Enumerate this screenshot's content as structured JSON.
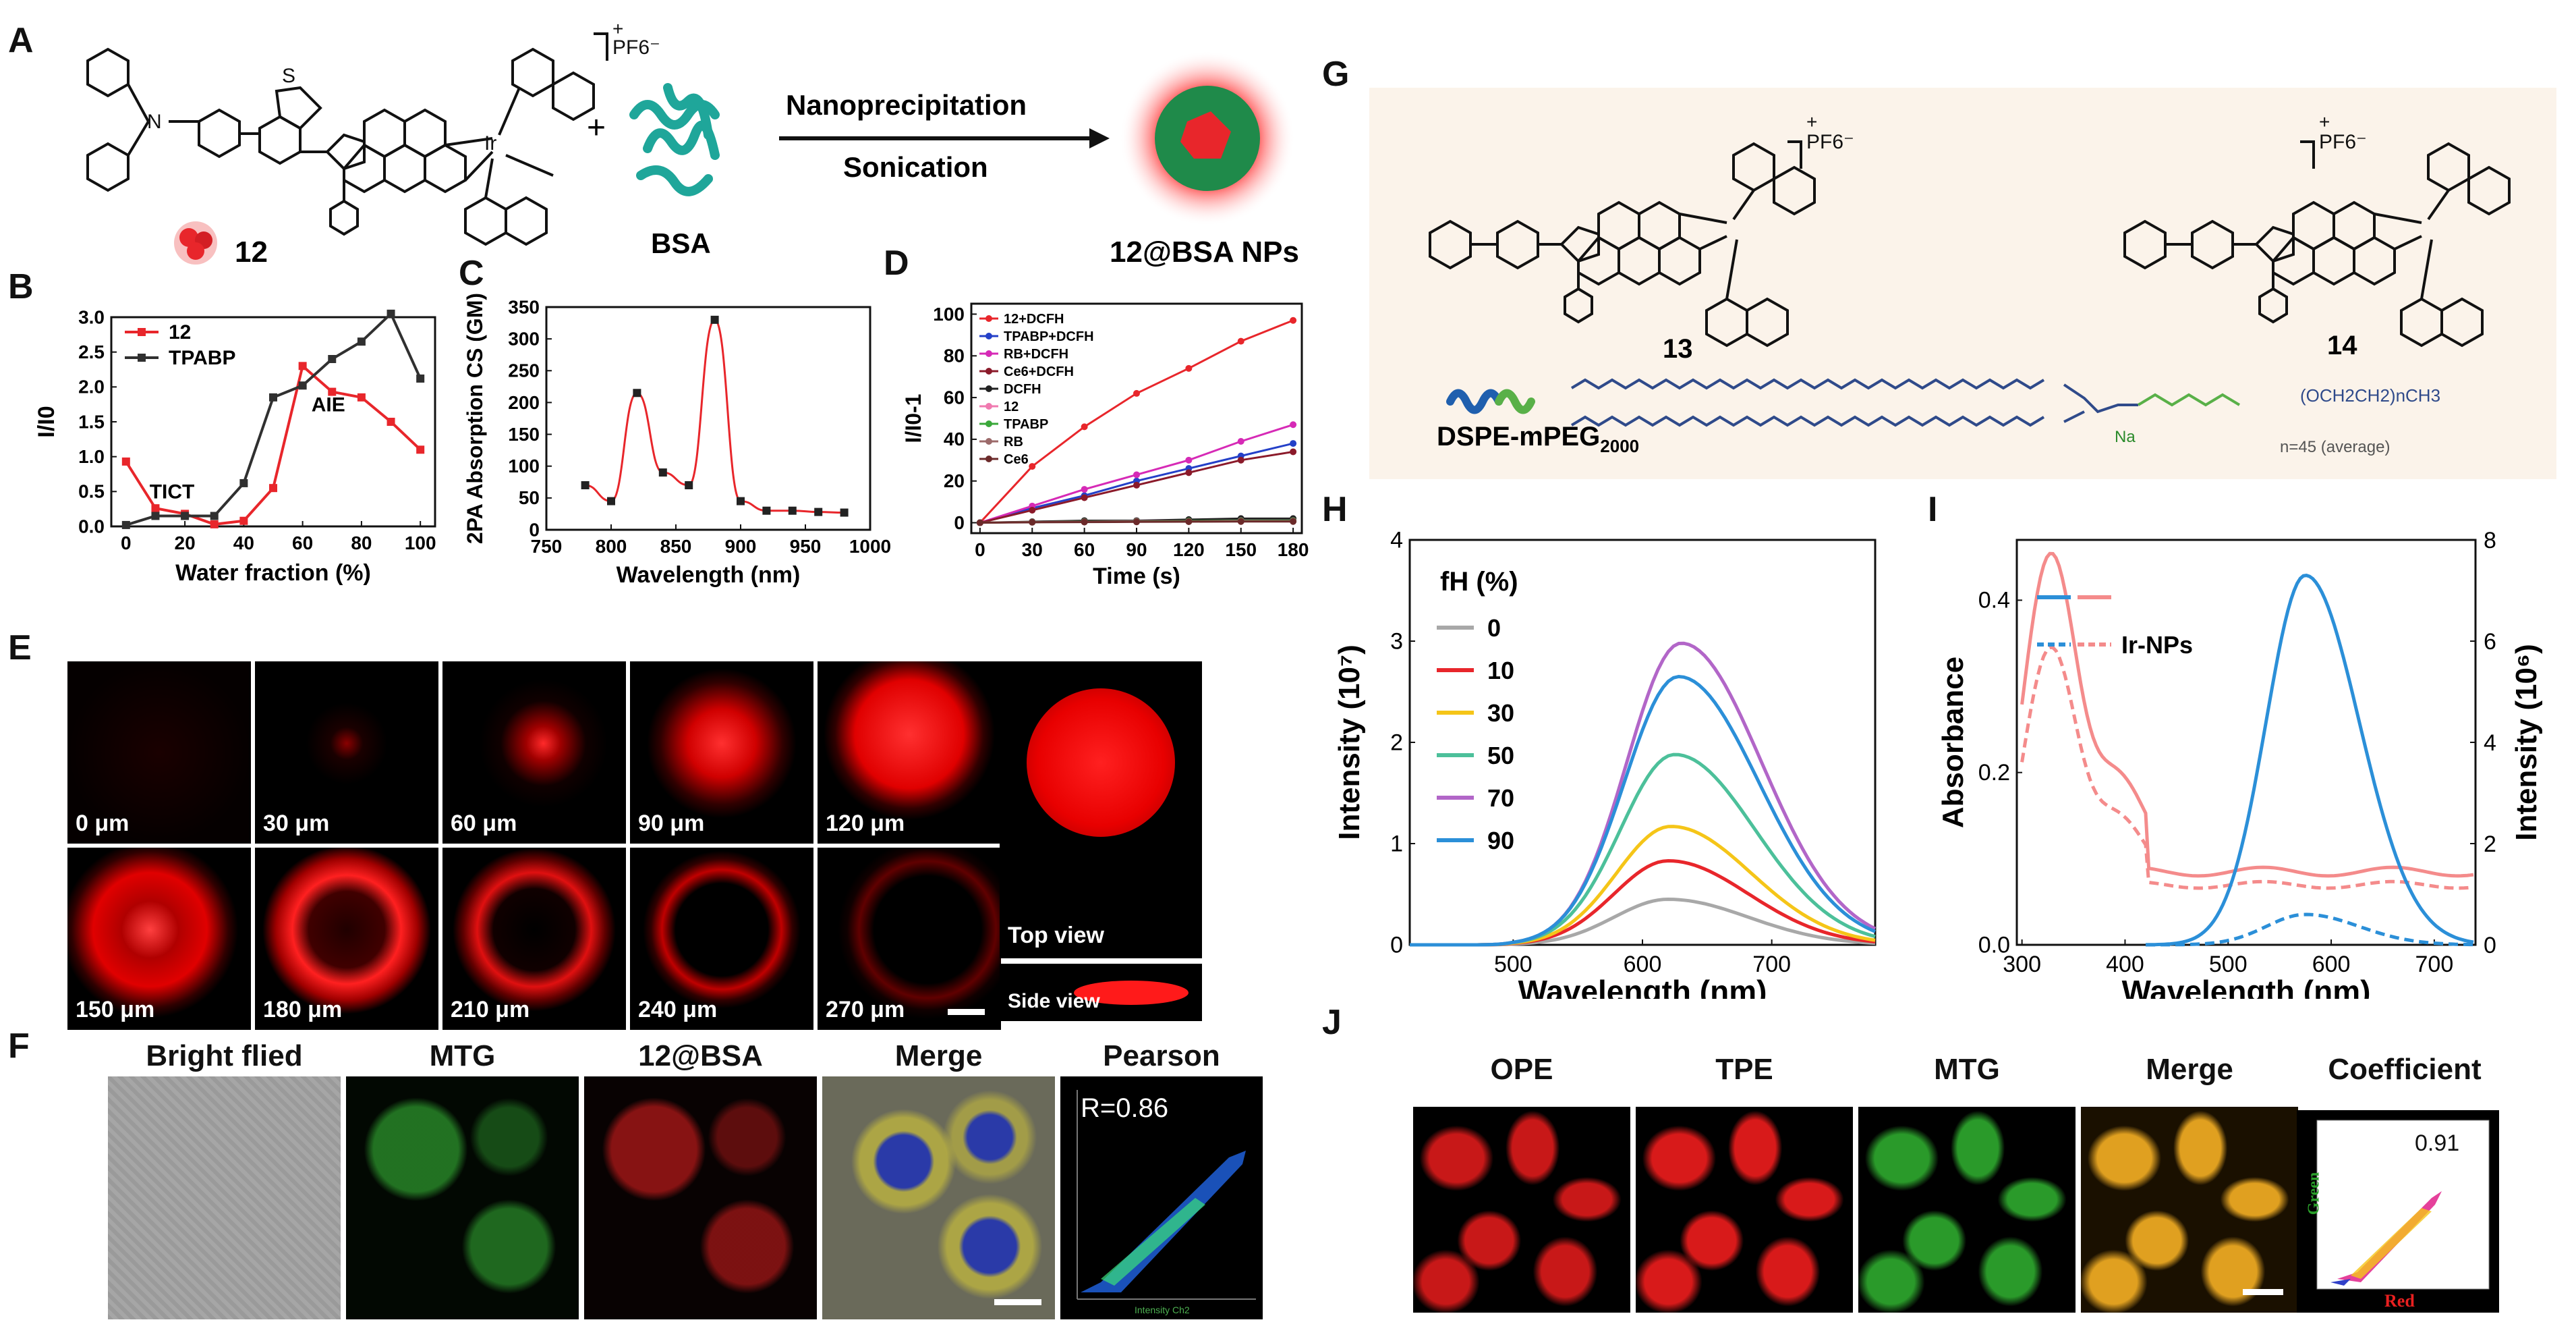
{
  "panel_labels": {
    "A": "A",
    "B": "B",
    "C": "C",
    "D": "D",
    "E": "E",
    "F": "F",
    "G": "G",
    "H": "H",
    "I": "I",
    "J": "J"
  },
  "panel_a": {
    "molecule_label": "12",
    "plus": "+",
    "bsa_label": "BSA",
    "arrow_top": "Nanoprecipitation",
    "arrow_bottom": "Sonication",
    "product_label": "12@BSA NPs",
    "counter_ion": "PF6⁻",
    "charge": "+",
    "atom_S": "S",
    "atom_N": "N",
    "atom_Ir": "Ir"
  },
  "panel_g": {
    "compound13": "13",
    "compound14": "14",
    "polymer_label": "DSPE-mPEG",
    "polymer_sub": "2000",
    "counter_ion": "PF6⁻",
    "charge": "+",
    "peg_repeat": "(OCH2CH2)nCH3",
    "na_label": "Na",
    "n_avg": "n=45 (average)"
  },
  "chart_data": [
    {
      "id": "B",
      "type": "line",
      "xlabel": "Water fraction (%)",
      "ylabel": "I/I0",
      "xlim": [
        -5,
        105
      ],
      "ylim": [
        0,
        3.0
      ],
      "xticks": [
        0,
        20,
        40,
        60,
        80,
        100
      ],
      "yticks": [
        0.0,
        0.5,
        1.0,
        1.5,
        2.0,
        2.5,
        3.0
      ],
      "x": [
        0,
        10,
        20,
        30,
        40,
        50,
        60,
        70,
        80,
        90,
        100
      ],
      "series": [
        {
          "name": "12",
          "color": "#e8262b",
          "values": [
            0.93,
            0.26,
            0.18,
            0.03,
            0.08,
            0.55,
            2.3,
            1.93,
            1.85,
            1.5,
            1.1
          ]
        },
        {
          "name": "TPABP",
          "color": "#303030",
          "values": [
            0.02,
            0.15,
            0.15,
            0.15,
            0.62,
            1.85,
            2.02,
            2.4,
            2.65,
            3.05,
            2.12
          ]
        }
      ],
      "annotations": [
        "TICT",
        "AIE"
      ]
    },
    {
      "id": "C",
      "type": "line",
      "xlabel": "Wavelength (nm)",
      "ylabel": "2PA Absorption CS (GM)",
      "xlim": [
        750,
        1000
      ],
      "ylim": [
        0,
        350
      ],
      "xticks": [
        750,
        800,
        850,
        900,
        950,
        1000
      ],
      "yticks": [
        0,
        50,
        100,
        150,
        200,
        250,
        300,
        350
      ],
      "points_x": [
        780,
        800,
        820,
        840,
        860,
        880,
        900,
        920,
        940,
        960,
        980
      ],
      "points_y": [
        70,
        45,
        215,
        90,
        70,
        330,
        45,
        30,
        30,
        28,
        27
      ],
      "color": "#e8262b"
    },
    {
      "id": "D",
      "type": "line",
      "xlabel": "Time (s)",
      "ylabel": "I/I0-1",
      "xlim": [
        -5,
        185
      ],
      "ylim": [
        -5,
        105
      ],
      "xticks": [
        0,
        30,
        60,
        90,
        120,
        150,
        180
      ],
      "yticks": [
        0,
        20,
        40,
        60,
        80,
        100
      ],
      "x": [
        0,
        30,
        60,
        90,
        120,
        150,
        180
      ],
      "series": [
        {
          "name": "12+DCFH",
          "color": "#e8262b",
          "values": [
            0,
            27,
            46,
            62,
            74,
            87,
            97
          ]
        },
        {
          "name": "TPABP+DCFH",
          "color": "#2440c8",
          "values": [
            0,
            7,
            13,
            20,
            26,
            32,
            38
          ]
        },
        {
          "name": "RB+DCFH",
          "color": "#d62ab6",
          "values": [
            0,
            8,
            16,
            23,
            30,
            39,
            47
          ]
        },
        {
          "name": "Ce6+DCFH",
          "color": "#8b1a2a",
          "values": [
            0,
            6,
            12,
            18,
            24,
            30,
            34
          ]
        },
        {
          "name": "DCFH",
          "color": "#222222",
          "values": [
            0,
            0.5,
            1,
            1,
            1.5,
            2,
            2
          ]
        },
        {
          "name": "12",
          "color": "#f07ab0",
          "values": [
            0,
            0.3,
            0.5,
            0.7,
            0.8,
            1,
            1
          ]
        },
        {
          "name": "TPABP",
          "color": "#3aa83a",
          "values": [
            0,
            0.3,
            0.5,
            0.6,
            0.8,
            0.9,
            1
          ]
        },
        {
          "name": "RB",
          "color": "#9c6a6a",
          "values": [
            0,
            0.3,
            0.4,
            0.5,
            0.6,
            0.7,
            0.8
          ]
        },
        {
          "name": "Ce6",
          "color": "#6b2a2a",
          "values": [
            0,
            0.2,
            0.3,
            0.4,
            0.5,
            0.6,
            0.6
          ]
        }
      ]
    },
    {
      "id": "H",
      "type": "line",
      "xlabel": "Wavelength (nm)",
      "ylabel": "Intensity (10⁷)",
      "xlim": [
        420,
        780
      ],
      "ylim": [
        0,
        4
      ],
      "xticks": [
        500,
        600,
        700
      ],
      "yticks": [
        0,
        1,
        2,
        3,
        4
      ],
      "legend_title": "fH (%)",
      "series": [
        {
          "name": "0",
          "color": "#a8a8a8",
          "peak": 620,
          "amp": 0.45
        },
        {
          "name": "10",
          "color": "#e8262b",
          "peak": 620,
          "amp": 0.83
        },
        {
          "name": "30",
          "color": "#f5c518",
          "peak": 622,
          "amp": 1.17
        },
        {
          "name": "50",
          "color": "#4cc09a",
          "peak": 625,
          "amp": 1.88
        },
        {
          "name": "70",
          "color": "#b266c8",
          "peak": 630,
          "amp": 2.98
        },
        {
          "name": "90",
          "color": "#2b8fd8",
          "peak": 628,
          "amp": 2.65
        }
      ]
    },
    {
      "id": "I",
      "type": "line",
      "xlabel": "Wavelength (nm)",
      "ylabel": "Absorbance",
      "ylabel_right": "Intensity (10⁶)",
      "xlim": [
        295,
        740
      ],
      "ylim": [
        0,
        0.47
      ],
      "ylim_right": [
        0,
        8
      ],
      "xticks": [
        300,
        400,
        500,
        600,
        700
      ],
      "yticks": [
        0.0,
        0.2,
        0.4
      ],
      "yticks_right": [
        0,
        2,
        4,
        6,
        8
      ],
      "legend": [
        "Ir-NPs"
      ],
      "abs_solid_color": "#f48b8b",
      "em_color": "#2b8fd8"
    }
  ],
  "panel_e": {
    "tiles": [
      "0 μm",
      "30 μm",
      "60 μm",
      "90 μm",
      "120 μm",
      "150 μm",
      "180 μm",
      "210 μm",
      "240 μm",
      "270 μm"
    ],
    "top_view": "Top view",
    "side_view": "Side view"
  },
  "panel_f": {
    "headers": [
      "Bright flied",
      "MTG",
      "12@BSA",
      "Merge",
      "Pearson"
    ],
    "pearson_r": "R=0.86",
    "axis_x": "Intensity Ch2"
  },
  "panel_j": {
    "headers": [
      "OPE",
      "TPE",
      "MTG",
      "Merge",
      "Coefficient"
    ],
    "coefficient": "0.91",
    "axis_green": "Green",
    "axis_red": "Red"
  }
}
